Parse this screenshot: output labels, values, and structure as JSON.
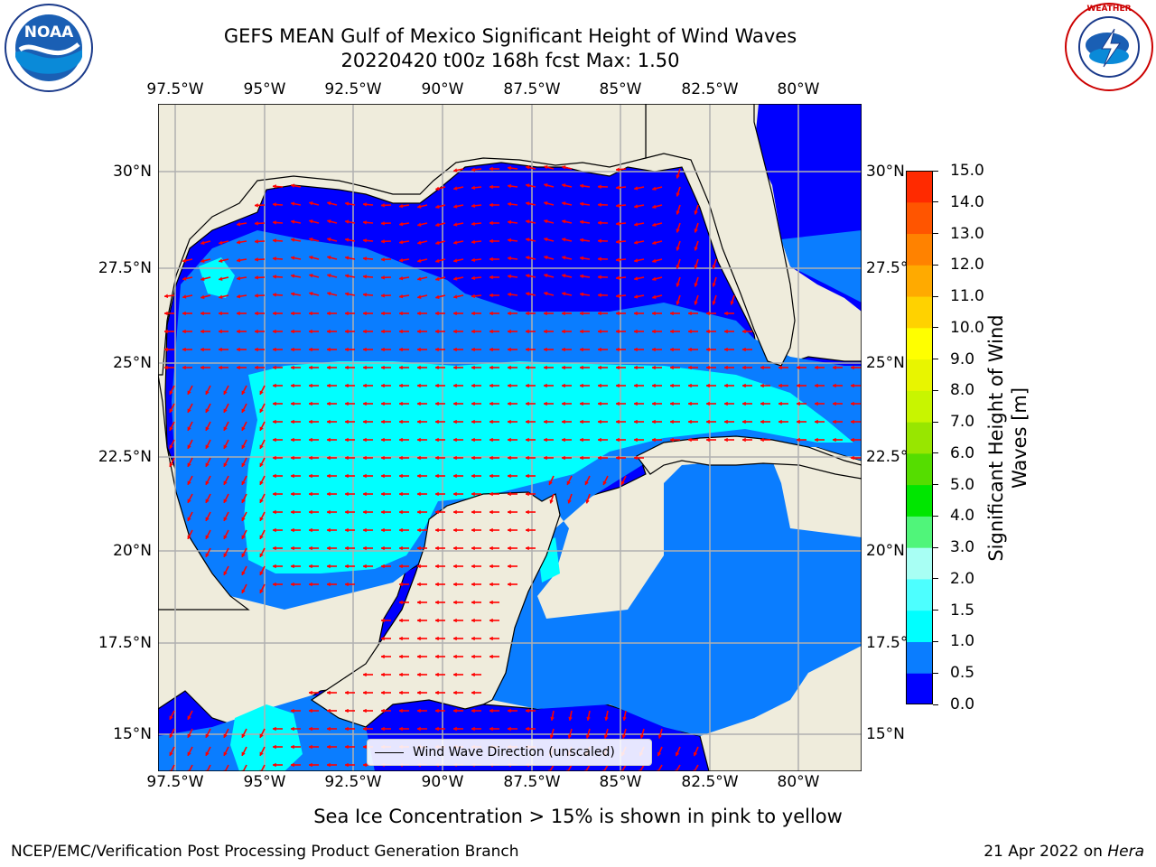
{
  "header": {
    "title_line1": "GEFS MEAN Gulf of Mexico Significant Height of Wind Waves",
    "title_line2": "20220420 t00z 168h fcst   Max: 1.50"
  },
  "logos": {
    "noaa_text": "NOAA",
    "noaa_ring": "NATIONAL OCEANIC AND ATMOSPHERIC ADMINISTRATION · U.S. DEPARTMENT OF COMMERCE",
    "nws_ring": "NATIONAL WEATHER SERVICE"
  },
  "map": {
    "lon_ticks": [
      "97.5°W",
      "95°W",
      "92.5°W",
      "90°W",
      "87.5°W",
      "85°W",
      "82.5°W",
      "80°W"
    ],
    "lat_ticks": [
      "30°N",
      "27.5°N",
      "25°N",
      "22.5°N",
      "20°N",
      "17.5°N",
      "15°N"
    ],
    "legend_label": "Wind Wave Direction (unscaled)",
    "colors": {
      "land": "#efecdc",
      "coast": "#000000",
      "grid": "#b0b0b0",
      "arrow": "#ff0000",
      "band_0_05": "#0000ff",
      "band_05_10": "#0a7dff",
      "band_10_15": "#00ffff"
    }
  },
  "colorbar": {
    "label_line1": "Significant Height of Wind",
    "label_line2": "Waves [m]",
    "ticks": [
      "0.0",
      "0.5",
      "1.0",
      "1.5",
      "2.0",
      "3.0",
      "4.0",
      "5.0",
      "6.0",
      "7.0",
      "8.0",
      "9.0",
      "10.0",
      "11.0",
      "12.0",
      "13.0",
      "14.0",
      "15.0"
    ],
    "colors": [
      "#0000ff",
      "#0a7dff",
      "#00ffff",
      "#4dffff",
      "#a8fff4",
      "#50f57a",
      "#00e600",
      "#55dd00",
      "#98e600",
      "#c8f500",
      "#e8f500",
      "#ffff00",
      "#ffd200",
      "#ffaa00",
      "#ff8200",
      "#ff5500",
      "#ff2a00"
    ]
  },
  "footer": {
    "note": "Sea Ice Concentration > 15% is shown in pink to yellow",
    "credit": "NCEP/EMC/Verification Post Processing Product Generation Branch",
    "date": "21 Apr 2022 on ",
    "machine": "Hera"
  }
}
